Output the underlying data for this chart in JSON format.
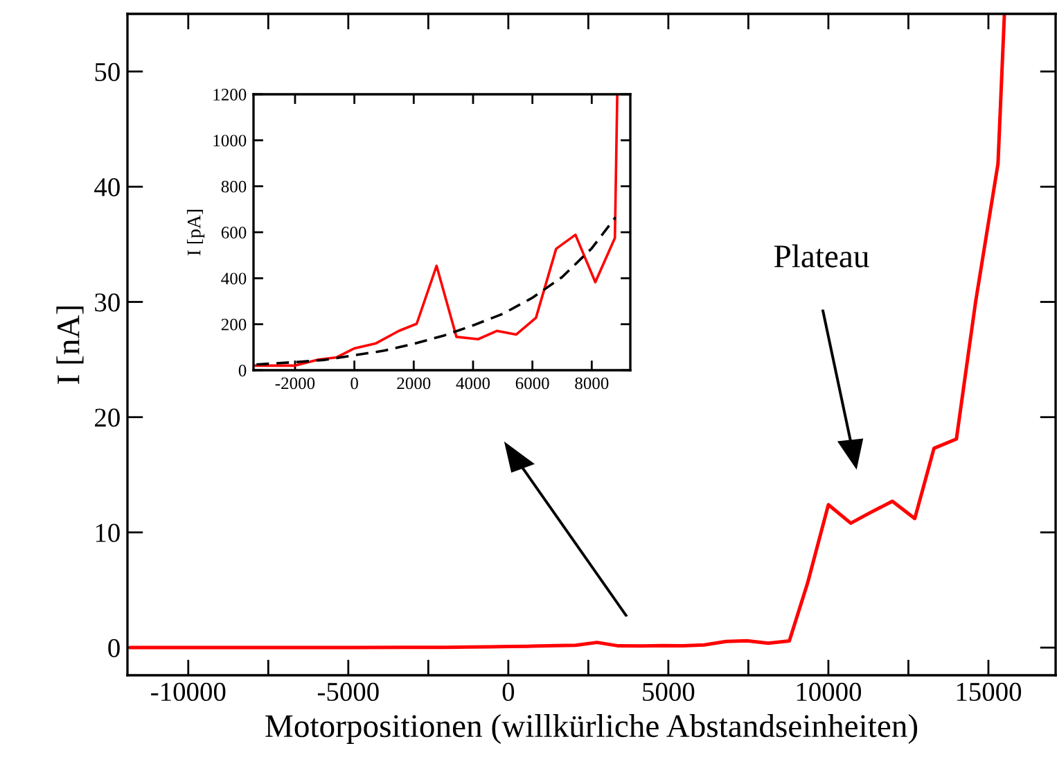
{
  "chart_data": [
    {
      "type": "line",
      "xlabel": "Motorpositionen (willkürliche Abstandseinheiten)",
      "ylabel": "I [nA]",
      "xlim": [
        -11900,
        17100
      ],
      "ylim": [
        -2.4,
        55
      ],
      "xticks": [
        -10000,
        {
          "value": -7500,
          "label": null
        },
        -5000,
        {
          "value": -2500,
          "label": null
        },
        0,
        {
          "value": 2500,
          "label": null
        },
        5000,
        {
          "value": 7500,
          "label": null
        },
        10000,
        {
          "value": 12500,
          "label": null
        },
        15000
      ],
      "yticks": [
        0,
        10,
        20,
        30,
        40,
        50
      ],
      "grid": false,
      "legend": false,
      "series": [
        {
          "color": "#ff0000",
          "line_style": "solid",
          "x": [
            -11800,
            -8000,
            -5000,
            -3330,
            -2000,
            -1220,
            -600,
            0,
            730,
            1500,
            2100,
            2770,
            3440,
            4170,
            4800,
            5450,
            6120,
            6800,
            7450,
            8120,
            8780,
            9350,
            10000,
            10700,
            11300,
            12000,
            12700,
            13300,
            14000,
            14600,
            15300,
            15500
          ],
          "values": [
            0.01,
            0.01,
            0.01,
            0.02,
            0.02,
            0.05,
            0.06,
            0.1,
            0.12,
            0.17,
            0.2,
            0.45,
            0.15,
            0.14,
            0.17,
            0.16,
            0.23,
            0.53,
            0.59,
            0.38,
            0.58,
            5.6,
            12.4,
            10.8,
            11.7,
            12.7,
            11.2,
            17.3,
            18.1,
            30,
            42,
            55
          ]
        }
      ],
      "annotations": [
        "Plateau"
      ]
    },
    {
      "type": "line",
      "ylabel": "I [pA]",
      "xlim": [
        -3400,
        9300
      ],
      "ylim": [
        0,
        1200
      ],
      "xticks": [
        -2000,
        0,
        2000,
        4000,
        6000,
        8000
      ],
      "yticks": [
        0,
        200,
        400,
        600,
        800,
        1000,
        1200
      ],
      "grid": false,
      "legend": false,
      "series": [
        {
          "color": "#ff0000",
          "line_style": "solid",
          "x": [
            -3330,
            -2000,
            -1220,
            -600,
            0,
            730,
            1500,
            2100,
            2770,
            3440,
            4170,
            4800,
            5450,
            6120,
            6800,
            7450,
            8120,
            8780,
            8860
          ],
          "values": [
            20,
            20,
            46,
            56,
            95,
            117,
            171,
            202,
            454,
            145,
            135,
            171,
            155,
            228,
            528,
            589,
            383,
            575,
            1200
          ]
        },
        {
          "color": "#000000",
          "line_style": "dashed",
          "x": [
            -3300,
            -2000,
            -1000,
            0,
            1000,
            2000,
            3000,
            4000,
            5000,
            6000,
            7000,
            8000,
            8800
          ],
          "values": [
            25,
            35,
            45,
            65,
            85,
            115,
            150,
            195,
            245,
            315,
            405,
            530,
            665
          ]
        }
      ]
    }
  ]
}
